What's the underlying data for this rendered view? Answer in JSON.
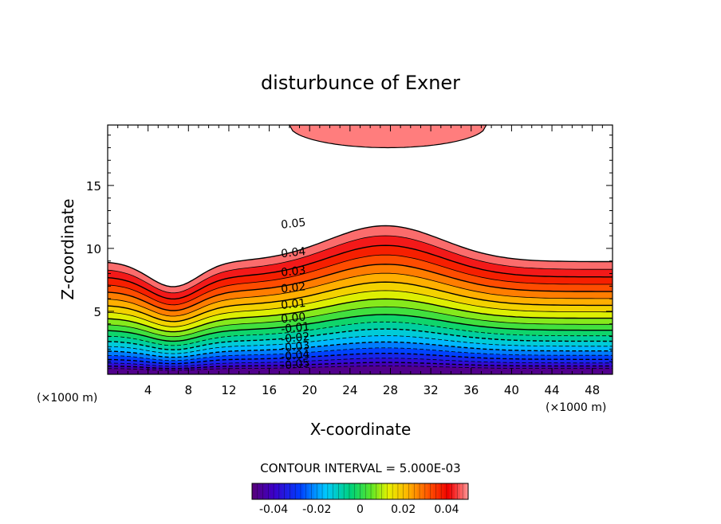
{
  "chart_data": {
    "type": "contour",
    "title": "disturbunce of Exner",
    "xlabel": "X-coordinate",
    "ylabel": "Z-coordinate",
    "x_unit_left": "(×1000 m)",
    "x_unit_right": "(×1000 m)",
    "xlim": [
      0,
      50
    ],
    "ylim": [
      0,
      19.8
    ],
    "x_ticks": [
      4,
      8,
      12,
      16,
      20,
      24,
      28,
      32,
      36,
      40,
      44,
      48
    ],
    "y_ticks": [
      5,
      10,
      15
    ],
    "contour_interval_text": "CONTOUR INTERVAL = 5.000E-03",
    "contour_interval": 0.005,
    "level_range": [
      -0.05,
      0.05
    ],
    "contour_labels": [
      {
        "text": "0.05",
        "x": 17,
        "z": 11.9
      },
      {
        "text": "0.04",
        "x": 17,
        "z": 9.6
      },
      {
        "text": "0.03",
        "x": 17,
        "z": 8.1
      },
      {
        "text": "0.02",
        "x": 17,
        "z": 6.8
      },
      {
        "text": "0.01",
        "x": 17,
        "z": 5.5
      },
      {
        "text": "0.00",
        "x": 17,
        "z": 4.4
      },
      {
        "text": "-0.01",
        "x": 17,
        "z": 3.6
      },
      {
        "text": "-0.02",
        "x": 17,
        "z": 2.8
      },
      {
        "text": "-0.03",
        "x": 17,
        "z": 2.1
      },
      {
        "text": "-0.04",
        "x": 17,
        "z": 1.4
      },
      {
        "text": "-0.05",
        "x": 17,
        "z": 0.7
      }
    ],
    "colorbar": {
      "tick_labels": [
        "-0.04",
        "-0.02",
        "0",
        "0.02",
        "0.04"
      ],
      "tick_values": [
        -0.04,
        -0.02,
        0,
        0.02,
        0.04
      ],
      "range": [
        -0.05,
        0.05
      ]
    }
  }
}
